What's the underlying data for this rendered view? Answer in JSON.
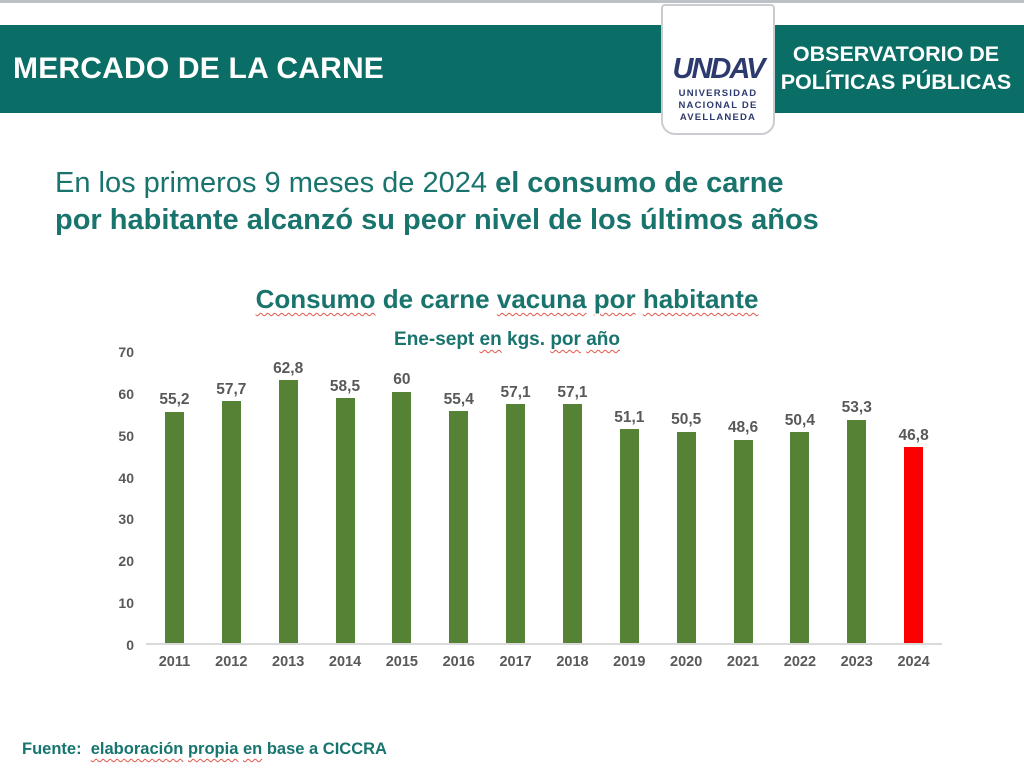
{
  "header": {
    "title": "MERCADO DE LA CARNE",
    "observatory": {
      "line1": "OBSERVATORIO DE",
      "line2": "POLÍTICAS PÚBLICAS"
    },
    "logo": {
      "wordmark": "UNDAV",
      "line1": "UNIVERSIDAD",
      "line2": "NACIONAL DE",
      "line3": "AVELLANEDA"
    }
  },
  "headline": {
    "line1_regular": "En los primeros 9 meses de 2024 ",
    "line1_bold": "el consumo de carne",
    "line2_bold": "por habitante alcanzó su peor nivel de los últimos años"
  },
  "chart_title_segments": [
    {
      "text": "Consumo",
      "squiggle": true
    },
    {
      "text": " de carne ",
      "squiggle": false
    },
    {
      "text": "vacuna",
      "squiggle": true
    },
    {
      "text": " ",
      "squiggle": false
    },
    {
      "text": "por",
      "squiggle": true
    },
    {
      "text": " ",
      "squiggle": false
    },
    {
      "text": "habitante",
      "squiggle": true
    }
  ],
  "chart_subtitle_segments": [
    {
      "text": "Ene-sept ",
      "squiggle": false
    },
    {
      "text": "en",
      "squiggle": true
    },
    {
      "text": " kgs. ",
      "squiggle": false
    },
    {
      "text": "por",
      "squiggle": true
    },
    {
      "text": " ",
      "squiggle": false
    },
    {
      "text": "año",
      "squiggle": true
    }
  ],
  "source_segments": [
    {
      "text": "Fuente:  ",
      "squiggle": false
    },
    {
      "text": "elaboración",
      "squiggle": true
    },
    {
      "text": " ",
      "squiggle": false
    },
    {
      "text": "propia",
      "squiggle": true
    },
    {
      "text": " ",
      "squiggle": false
    },
    {
      "text": "en",
      "squiggle": true
    },
    {
      "text": " base a CICCRA",
      "squiggle": false
    }
  ],
  "chart_data": {
    "type": "bar",
    "title": "Consumo de carne vacuna por habitante",
    "subtitle": "Ene-sept en kgs. por año",
    "categories": [
      "2011",
      "2012",
      "2013",
      "2014",
      "2015",
      "2016",
      "2017",
      "2018",
      "2019",
      "2020",
      "2021",
      "2022",
      "2023",
      "2024"
    ],
    "values": [
      55.2,
      57.7,
      62.8,
      58.5,
      60,
      55.4,
      57.1,
      57.1,
      51.1,
      50.5,
      48.6,
      50.4,
      53.3,
      46.8
    ],
    "value_labels": [
      "55,2",
      "57,7",
      "62,8",
      "58,5",
      "60",
      "55,4",
      "57,1",
      "57,1",
      "51,1",
      "50,5",
      "48,6",
      "50,4",
      "53,3",
      "46,8"
    ],
    "highlight_index": 13,
    "bar_colors": {
      "default": "#568235",
      "highlight": "#fb0000"
    },
    "ylim": [
      0,
      70
    ],
    "yticks": [
      0,
      10,
      20,
      30,
      40,
      50,
      60,
      70
    ],
    "grid": false,
    "legend": false
  },
  "colors": {
    "banner_teal": "#0b6e66",
    "text_teal": "#1a746e",
    "logo_navy": "#2d3a6e",
    "bar_green": "#568235",
    "bar_red": "#fb0000",
    "label_gray": "#595959",
    "squiggle_red": "#e2574a"
  }
}
